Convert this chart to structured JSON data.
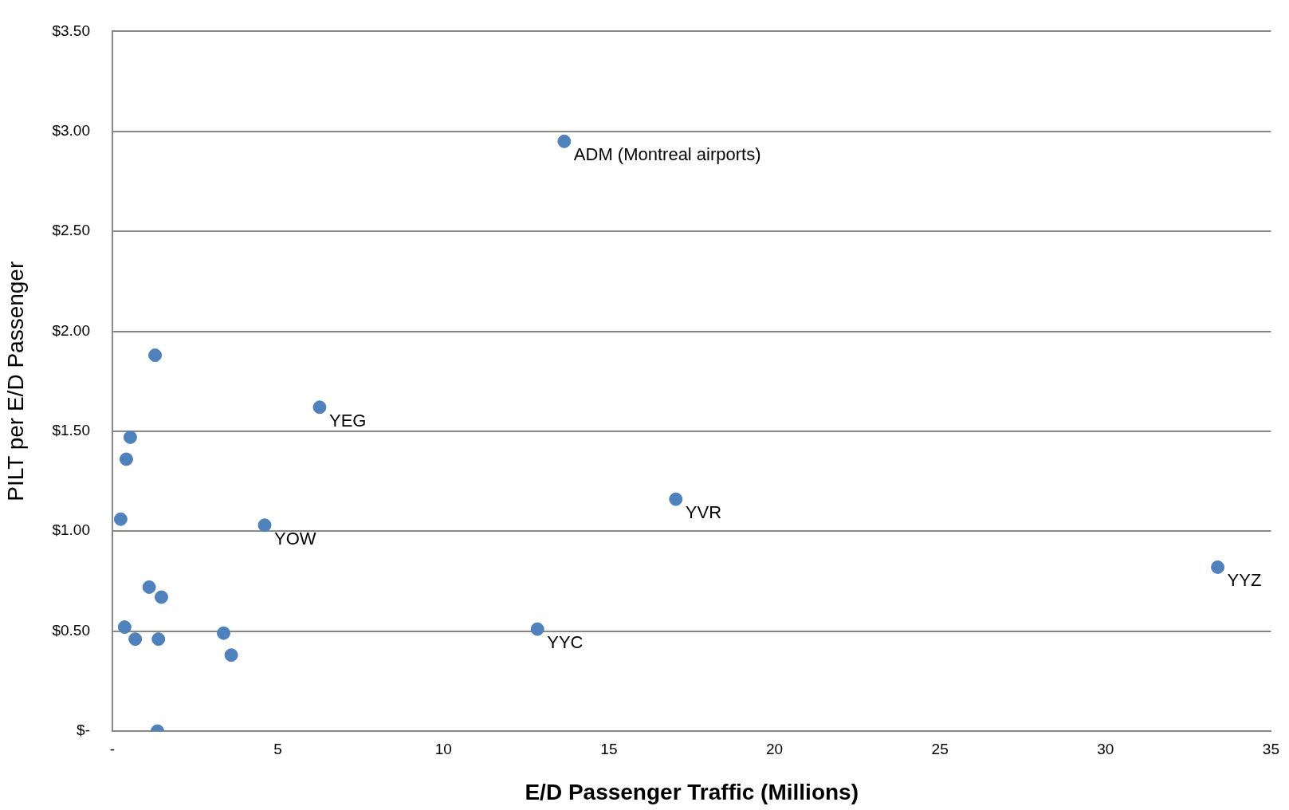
{
  "chart_data": {
    "type": "scatter",
    "xlabel": "E/D Passenger Traffic (Millions)",
    "ylabel": "PILT per E/D Passenger",
    "x": [
      1.29,
      0.54,
      0.42,
      0.25,
      1.11,
      1.48,
      0.37,
      0.69,
      1.39,
      3.36,
      3.59,
      1.36,
      4.6,
      6.26,
      12.84,
      13.65,
      17.02,
      33.39
    ],
    "values": [
      1.88,
      1.47,
      1.36,
      1.06,
      0.72,
      0.67,
      0.52,
      0.46,
      0.46,
      0.49,
      0.38,
      0.0,
      1.03,
      1.62,
      0.51,
      2.95,
      1.16,
      0.82
    ],
    "color": "#4f81bd",
    "marker": "circle",
    "xlim": [
      0,
      35
    ],
    "xticks": [
      {
        "value": 0,
        "label": "-"
      },
      5,
      10,
      15,
      20,
      25,
      30,
      35
    ],
    "ylim": [
      0,
      3.5
    ],
    "yticks": [
      {
        "value": 0,
        "label": "$-"
      },
      {
        "value": 0.5,
        "label": "$0.50"
      },
      {
        "value": 1,
        "label": "$1.00"
      },
      {
        "value": 1.5,
        "label": "$1.50"
      },
      {
        "value": 2,
        "label": "$2.00"
      },
      {
        "value": 2.5,
        "label": "$2.50"
      },
      {
        "value": 3,
        "label": "$3.00"
      },
      {
        "value": 3.5,
        "label": "$3.50"
      }
    ],
    "grid": "y",
    "legend": false,
    "annotations": [
      {
        "text": "YOW",
        "x": 4.6,
        "y": 1.03
      },
      {
        "text": "YEG",
        "x": 6.26,
        "y": 1.62
      },
      {
        "text": "YYC",
        "x": 12.84,
        "y": 0.51
      },
      {
        "text": "ADM (Montreal airports)",
        "x": 13.65,
        "y": 2.95
      },
      {
        "text": "YVR",
        "x": 17.02,
        "y": 1.16
      },
      {
        "text": "YYZ",
        "x": 33.39,
        "y": 0.82
      }
    ]
  }
}
